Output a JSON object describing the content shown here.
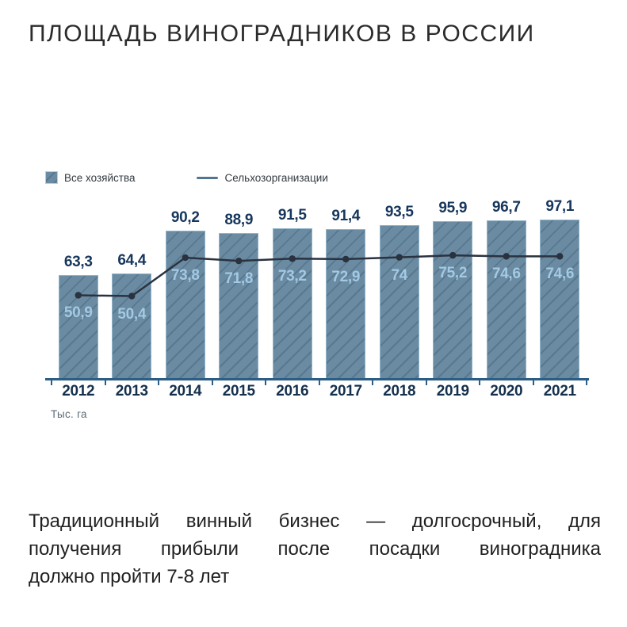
{
  "title": "ПЛОЩАДЬ ВИНОГРАДНИКОВ В РОССИИ",
  "legend": {
    "bars_label": "Все хозяйства",
    "line_label": "Сельхозорганизации"
  },
  "axis_note": "Тыс. га",
  "footer": {
    "lines": [
      "Традиционный винный бизнес — долгосрочный, для",
      "получения прибыли после посадки виноградника",
      "должно пройти 7-8 лет"
    ]
  },
  "colors": {
    "bar_fill": "#6a8ba2",
    "bar_hatch": "#57788e",
    "bar_border": "#92b5ca",
    "trend_line": "#2a323f",
    "trend_label": "#a4c9e3",
    "bar_value_label": "#16365c",
    "axis": "#2b5d85",
    "axis_note": "#5c6b75",
    "legend_line": "#547590",
    "title": "#2b2b2b",
    "footer": "#212121"
  },
  "chart_data": {
    "type": "bar",
    "title": "ПЛОЩАДЬ ВИНОГРАДНИКОВ В РОССИИ",
    "unit": "Тыс. га",
    "categories": [
      "2012",
      "2013",
      "2014",
      "2015",
      "2016",
      "2017",
      "2018",
      "2019",
      "2020",
      "2021"
    ],
    "series": [
      {
        "name": "Все хозяйства",
        "type": "bar",
        "values": [
          63.3,
          64.4,
          90.2,
          88.9,
          91.5,
          91.4,
          93.5,
          95.9,
          96.7,
          97.1
        ],
        "labels": [
          "63,3",
          "64,4",
          "90,2",
          "88,9",
          "91,5",
          "91,4",
          "93,5",
          "95,9",
          "96,7",
          "97,1"
        ]
      },
      {
        "name": "Сельхозорганизации",
        "type": "line",
        "values": [
          50.9,
          50.4,
          73.8,
          71.8,
          73.2,
          72.9,
          74,
          75.2,
          74.6,
          74.6
        ],
        "labels": [
          "50,9",
          "50,4",
          "73,8",
          "71,8",
          "73,2",
          "72,9",
          "74",
          "75,2",
          "74,6",
          "74,6"
        ]
      }
    ],
    "ylim": [
      0,
      110
    ],
    "grid": false,
    "legend_position": "top-left"
  }
}
